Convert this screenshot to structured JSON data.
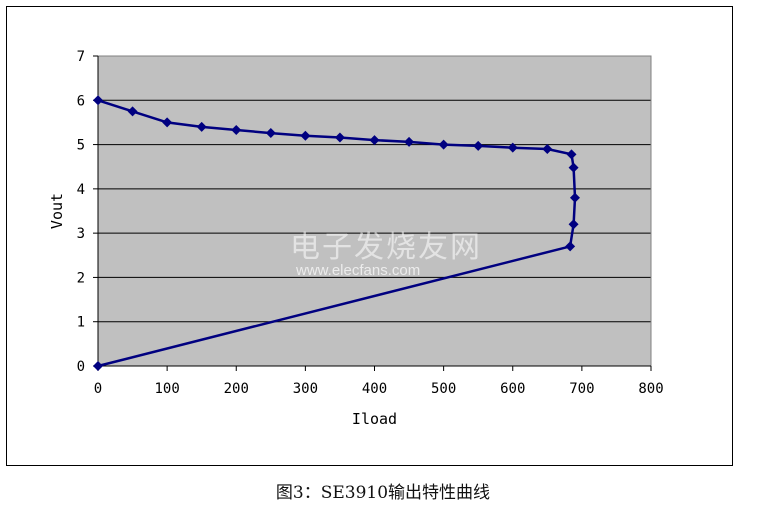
{
  "chart_data": {
    "type": "line",
    "xlabel": "Iload",
    "ylabel": "Vout",
    "xlim": [
      0,
      800
    ],
    "ylim": [
      0,
      7
    ],
    "x_ticks": [
      0,
      100,
      200,
      300,
      400,
      500,
      600,
      700,
      800
    ],
    "y_ticks": [
      0,
      1,
      2,
      3,
      4,
      5,
      6,
      7
    ],
    "grid": "horizontal",
    "legend": "none",
    "series": [
      {
        "points": [
          {
            "x": 0,
            "y": 6.0
          },
          {
            "x": 50,
            "y": 5.75
          },
          {
            "x": 100,
            "y": 5.5
          },
          {
            "x": 150,
            "y": 5.4
          },
          {
            "x": 200,
            "y": 5.33
          },
          {
            "x": 250,
            "y": 5.26
          },
          {
            "x": 300,
            "y": 5.2
          },
          {
            "x": 350,
            "y": 5.16
          },
          {
            "x": 400,
            "y": 5.1
          },
          {
            "x": 450,
            "y": 5.06
          },
          {
            "x": 500,
            "y": 5.0
          },
          {
            "x": 550,
            "y": 4.97
          },
          {
            "x": 600,
            "y": 4.93
          },
          {
            "x": 650,
            "y": 4.9
          },
          {
            "x": 685,
            "y": 4.78
          },
          {
            "x": 688,
            "y": 4.48
          },
          {
            "x": 690,
            "y": 3.8
          },
          {
            "x": 688,
            "y": 3.2
          },
          {
            "x": 683,
            "y": 2.7
          },
          {
            "x": 0,
            "y": 0
          }
        ]
      }
    ]
  },
  "colors": {
    "plot_area": "#c0c0c0",
    "series_line": "#000080",
    "gridline": "#000000"
  },
  "watermark": {
    "text_cn": "电子发烧友网",
    "url": "www.elecfans.com"
  },
  "caption": "图3：SE3910输出特性曲线"
}
